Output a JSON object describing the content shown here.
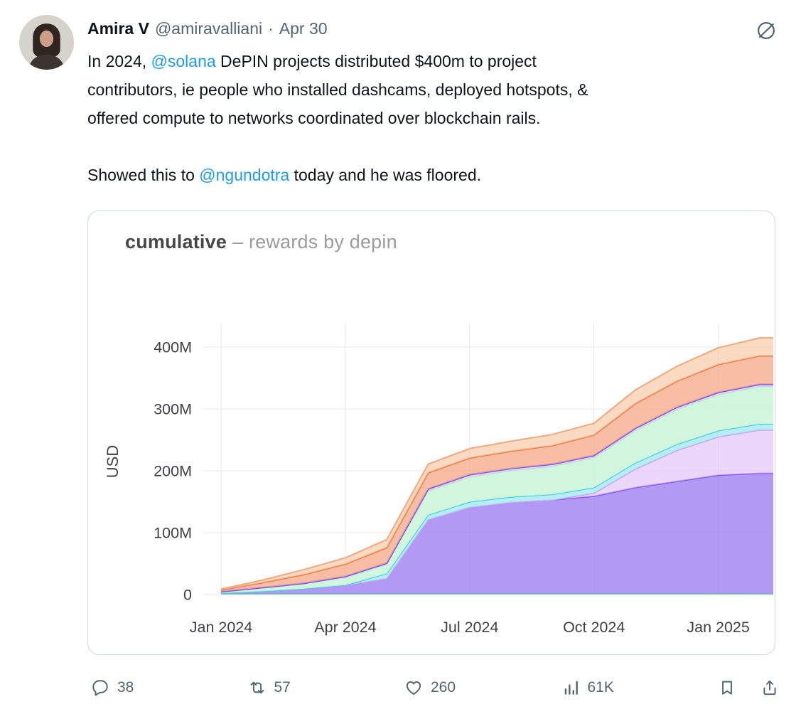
{
  "tweet": {
    "author": {
      "name": "Amira V",
      "handle": "@amiravalliani",
      "separator": "·",
      "date": "Apr 30"
    },
    "body": {
      "paragraphs": [
        {
          "lines": [
            [
              {
                "t": "In 2024, "
              },
              {
                "t": "@solana",
                "link": true
              },
              {
                "t": " DePIN projects distributed $400m to project"
              }
            ],
            [
              {
                "t": "contributors, ie people who installed dashcams, deployed hotspots, &"
              }
            ],
            [
              {
                "t": "offered compute to networks coordinated over blockchain rails."
              }
            ]
          ]
        },
        {
          "lines": [
            [
              {
                "t": "Showed this to "
              },
              {
                "t": "@ngundotra",
                "link": true
              },
              {
                "t": " today and he was floored."
              }
            ]
          ]
        }
      ]
    },
    "actions": {
      "reply": "38",
      "repost": "57",
      "like": "260",
      "views": "61K"
    }
  },
  "chart_data": {
    "type": "area",
    "stacked": true,
    "title": "cumulative – rewards by depin",
    "title_main": "cumulative",
    "title_sub": "– rewards by depin",
    "ylabel": "USD",
    "unit": "USD (millions)",
    "grid": true,
    "legend": "none",
    "x_months": [
      "Jan 2024",
      "Feb 2024",
      "Mar 2024",
      "Apr 2024",
      "May 2024",
      "Jun 2024",
      "Jul 2024",
      "Aug 2024",
      "Sep 2024",
      "Oct 2024",
      "Nov 2024",
      "Dec 2024",
      "Jan 2025",
      "Feb 2025"
    ],
    "x_tick_labels": [
      "Jan 2024",
      "Apr 2024",
      "Jul 2024",
      "Oct 2024",
      "Jan 2025"
    ],
    "x_tick_indices": [
      0,
      3,
      6,
      9,
      12
    ],
    "y_ticks": [
      0,
      100,
      200,
      300,
      400
    ],
    "y_tick_labels": [
      "0",
      "100M",
      "200M",
      "300M",
      "400M"
    ],
    "y_max": 430,
    "total_end_value_musd": 415,
    "series": [
      {
        "name": "baseline-mint",
        "fill": "#d9f7e6",
        "fill_opacity": 0.9,
        "stroke": "#7ae2b0",
        "stroke_width": 2,
        "values": [
          0.8,
          0.8,
          0.8,
          0.8,
          0.8,
          0.8,
          0.8,
          0.8,
          0.8,
          0.8,
          0.8,
          0.8,
          0.8,
          0.8
        ]
      },
      {
        "name": "main-purple",
        "fill": "#9f7ff0",
        "fill_opacity": 0.8,
        "stroke": "#8257e6",
        "stroke_width": 2,
        "values": [
          1,
          4,
          8,
          14,
          25,
          120,
          140,
          148,
          152,
          158,
          172,
          182,
          192,
          195
        ]
      },
      {
        "name": "lavender",
        "fill": "#dcbdf8",
        "fill_opacity": 0.6,
        "stroke": "#c9a0f2",
        "stroke_width": 2,
        "values": [
          0,
          0,
          0,
          0,
          0,
          0,
          0,
          0,
          0,
          5,
          30,
          50,
          62,
          70
        ]
      },
      {
        "name": "cyan",
        "fill": "#9fe8f2",
        "fill_opacity": 0.75,
        "stroke": "#38cfe0",
        "stroke_width": 2,
        "values": [
          0.5,
          0.5,
          0.5,
          0.5,
          8,
          8,
          9,
          9,
          9,
          9,
          10,
          10,
          10,
          10
        ]
      },
      {
        "name": "mint-green",
        "fill": "#cdf4da",
        "fill_opacity": 0.9,
        "stroke": "#b9edcb",
        "stroke_width": 1.5,
        "values": [
          2,
          5,
          8,
          12,
          15,
          38,
          40,
          42,
          45,
          48,
          52,
          56,
          58,
          60
        ]
      },
      {
        "name": "violet-line",
        "fill": "#cabcf5",
        "fill_opacity": 0.5,
        "stroke": "#7d4ff0",
        "stroke_width": 2.5,
        "values": [
          0.5,
          1,
          1,
          2,
          2,
          4,
          4,
          4,
          4,
          4,
          4,
          4,
          4,
          4
        ]
      },
      {
        "name": "orange",
        "fill": "#f6ae8c",
        "fill_opacity": 0.8,
        "stroke": "#ec7f4e",
        "stroke_width": 2.5,
        "values": [
          2.5,
          8,
          14,
          20,
          25,
          26,
          27,
          28,
          30,
          33,
          40,
          42,
          45,
          46
        ]
      },
      {
        "name": "light-orange",
        "fill": "#f9cead",
        "fill_opacity": 0.75,
        "stroke": "#f2a87e",
        "stroke_width": 2,
        "values": [
          1.5,
          4,
          8,
          10,
          13,
          14,
          15,
          16,
          18,
          19,
          22,
          24,
          27,
          29
        ]
      }
    ]
  }
}
